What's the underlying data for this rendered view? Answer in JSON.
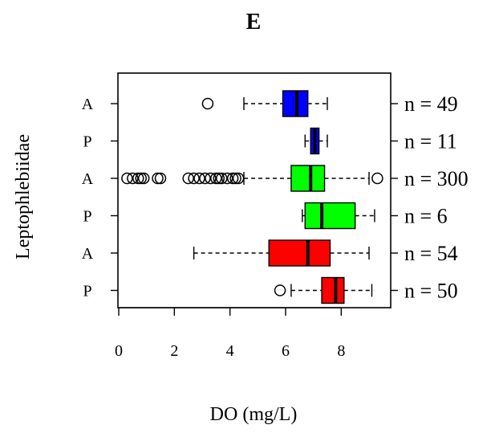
{
  "chart_data": {
    "type": "boxplot",
    "orientation": "horizontal",
    "title": "E",
    "xlabel": "DO (mg/L)",
    "ylabel": "Leptophlebiidae",
    "xlim": [
      0,
      9.75
    ],
    "x_ticks": [
      0,
      2,
      4,
      6,
      8
    ],
    "grid": false,
    "legend": "none",
    "categories": [
      "A",
      "P",
      "A",
      "P",
      "A",
      "P"
    ],
    "counts": [
      "n = 49",
      "n = 11",
      "n = 300",
      "n = 6",
      "n = 54",
      "n = 50"
    ],
    "series": [
      {
        "label": "A",
        "count": "n = 49",
        "color": "#0000ff",
        "whisker_low": 4.5,
        "q1": 5.9,
        "median": 6.4,
        "q3": 6.8,
        "whisker_high": 7.5,
        "outliers": [
          3.2
        ]
      },
      {
        "label": "P",
        "count": "n = 11",
        "color": "#0000ff",
        "whisker_low": 6.7,
        "q1": 6.9,
        "median": 7.05,
        "q3": 7.2,
        "whisker_high": 7.5,
        "outliers": []
      },
      {
        "label": "A",
        "count": "n = 300",
        "color": "#00ff00",
        "whisker_low": 4.5,
        "q1": 6.2,
        "median": 6.9,
        "q3": 7.4,
        "whisker_high": 9.0,
        "outliers": [
          0.3,
          0.5,
          0.7,
          0.8,
          0.9,
          1.4,
          1.5,
          2.5,
          2.7,
          2.9,
          3.1,
          3.3,
          3.5,
          3.6,
          3.7,
          3.9,
          4.1,
          4.2,
          4.3,
          9.3
        ]
      },
      {
        "label": "P",
        "count": "n = 6",
        "color": "#00ff00",
        "whisker_low": 6.6,
        "q1": 6.7,
        "median": 7.3,
        "q3": 8.5,
        "whisker_high": 9.2,
        "outliers": []
      },
      {
        "label": "A",
        "count": "n = 54",
        "color": "#ff0000",
        "whisker_low": 2.7,
        "q1": 5.4,
        "median": 6.8,
        "q3": 7.6,
        "whisker_high": 9.0,
        "outliers": []
      },
      {
        "label": "P",
        "count": "n = 50",
        "color": "#ff0000",
        "whisker_low": 6.2,
        "q1": 7.3,
        "median": 7.8,
        "q3": 8.1,
        "whisker_high": 9.1,
        "outliers": [
          5.8
        ]
      }
    ]
  }
}
